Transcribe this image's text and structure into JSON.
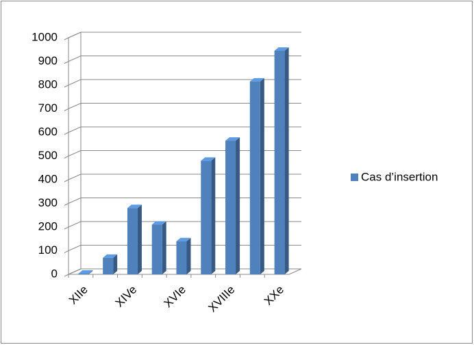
{
  "chart_data": {
    "type": "bar3d",
    "categories": [
      "XIIe",
      null,
      "XIVe",
      null,
      "XVIe",
      null,
      "XVIIIe",
      null,
      "XXe"
    ],
    "series": [
      {
        "name": "Cas d’insertion",
        "color": "#4f81bd",
        "values": [
          3,
          70,
          280,
          210,
          140,
          480,
          565,
          815,
          945
        ]
      }
    ],
    "ylim": [
      0,
      1000
    ],
    "yticks": [
      0,
      100,
      200,
      300,
      400,
      500,
      600,
      700,
      800,
      900,
      1000
    ],
    "grid": true,
    "legend": "right"
  }
}
